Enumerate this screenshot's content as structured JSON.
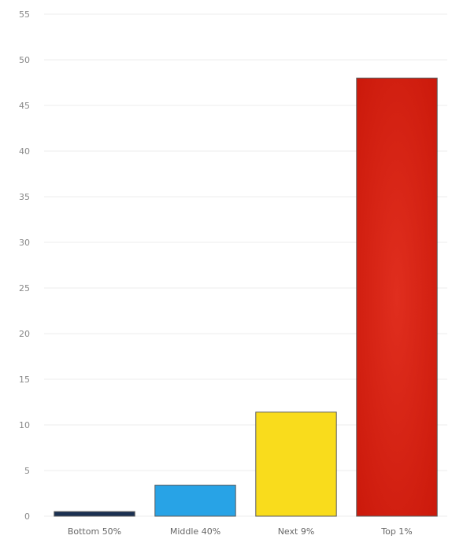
{
  "chart_data": {
    "type": "bar",
    "categories": [
      "Bottom 50%",
      "Middle 40%",
      "Next 9%",
      "Top 1%"
    ],
    "values": [
      0.5,
      3.4,
      11.4,
      48
    ],
    "colors": [
      "#1b3152",
      "#28a3e6",
      "#f9dc1c",
      "#d71e10"
    ],
    "title": "",
    "xlabel": "",
    "ylabel": "",
    "ylim": [
      0,
      55
    ],
    "yticks": [
      0,
      5,
      10,
      15,
      20,
      25,
      30,
      35,
      40,
      45,
      50,
      55
    ],
    "grid": true,
    "legend": "none"
  }
}
